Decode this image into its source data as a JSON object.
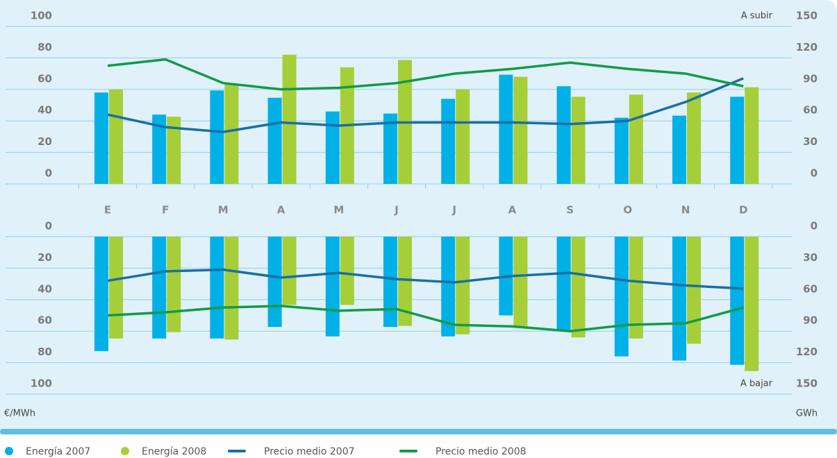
{
  "chart_data": [
    {
      "type": "bar",
      "annotation": "A subir",
      "categories": [
        "E",
        "F",
        "M",
        "A",
        "M",
        "J",
        "J",
        "A",
        "S",
        "O",
        "N",
        "D"
      ],
      "ylim": [
        0,
        100
      ],
      "yticks": [
        0,
        20,
        40,
        60,
        80,
        100
      ],
      "y2lim": [
        0,
        150
      ],
      "y2ticks": [
        0,
        30,
        60,
        90,
        120,
        150
      ],
      "grid": true,
      "series": [
        {
          "name": "Energía 2007",
          "color": "#00b0e6",
          "axis": "y2",
          "kind": "bar",
          "values": [
            87,
            66,
            89,
            82,
            69,
            67,
            81,
            104,
            93,
            63,
            65,
            83
          ]
        },
        {
          "name": "Energía 2008",
          "color": "#a6ce39",
          "axis": "y2",
          "kind": "bar",
          "values": [
            90,
            64,
            95,
            123,
            111,
            118,
            90,
            102,
            83,
            85,
            87,
            92
          ]
        },
        {
          "name": "Precio medio 2007",
          "color": "#1a6fa3",
          "kind": "line",
          "values": [
            44,
            36,
            33,
            39,
            37,
            39,
            39,
            39,
            38,
            40,
            52,
            67
          ]
        },
        {
          "name": "Precio medio 2008",
          "color": "#139a48",
          "kind": "line",
          "values": [
            75,
            79,
            64,
            60,
            61,
            64,
            70,
            73,
            77,
            73,
            70,
            62
          ]
        }
      ]
    },
    {
      "type": "bar",
      "annotation": "A bajar",
      "inverted": true,
      "ylabel": "€/MWh",
      "y2label": "GWh",
      "ylim": [
        0,
        100
      ],
      "yticks": [
        0,
        20,
        40,
        60,
        80,
        100
      ],
      "y2lim": [
        0,
        150
      ],
      "y2ticks": [
        0,
        30,
        60,
        90,
        120,
        150
      ],
      "grid": true,
      "series": [
        {
          "color": "#00b0e6",
          "axis": "y2",
          "kind": "bar",
          "values": [
            109,
            97,
            97,
            86,
            95,
            86,
            95,
            75,
            89,
            114,
            118,
            122
          ]
        },
        {
          "color": "#a6ce39",
          "axis": "y2",
          "kind": "bar",
          "values": [
            97,
            91,
            98,
            65,
            65,
            85,
            93,
            86,
            96,
            97,
            102,
            128
          ]
        },
        {
          "color": "#1a6fa3",
          "kind": "line",
          "values": [
            28,
            22,
            21,
            26,
            23,
            27,
            29,
            25,
            23,
            28,
            31,
            33
          ]
        },
        {
          "color": "#139a48",
          "kind": "line",
          "values": [
            50,
            48,
            45,
            44,
            47,
            46,
            56,
            57,
            60,
            56,
            55,
            45
          ]
        }
      ]
    }
  ]
}
